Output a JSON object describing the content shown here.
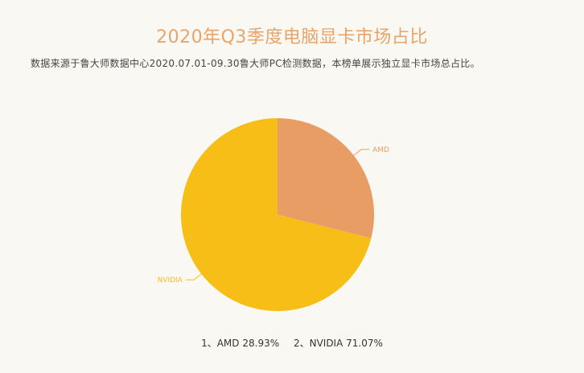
{
  "chart_data": {
    "type": "pie",
    "title": "2020年Q3季度电脑显卡市场占比",
    "subtitle": "数据来源于鲁大师数据中心2020.07.01-09.30鲁大师PC检测数据，本榜单展示独立显卡市场总占比。",
    "slices": [
      {
        "label": "AMD",
        "value": 28.93,
        "color": "#e79d63"
      },
      {
        "label": "NVIDIA",
        "value": 71.07,
        "color": "#f6be17"
      }
    ],
    "legend": [
      {
        "index": "1、",
        "label": "AMD",
        "value": "28.93%"
      },
      {
        "index": "2、",
        "label": "NVIDIA",
        "value": "71.07%"
      }
    ]
  }
}
